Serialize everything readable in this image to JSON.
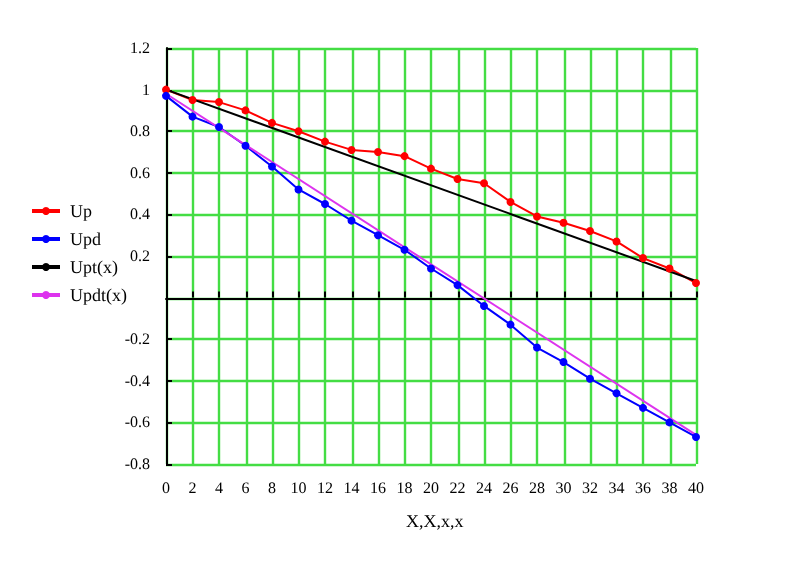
{
  "chart_data": {
    "type": "line",
    "xlabel": "X,X,x,x",
    "xlim": [
      0,
      40
    ],
    "ylim": [
      -0.8,
      1.2
    ],
    "xticks": [
      0,
      2,
      4,
      6,
      8,
      10,
      12,
      14,
      16,
      18,
      20,
      22,
      24,
      26,
      28,
      30,
      32,
      34,
      36,
      38,
      40
    ],
    "yticks": [
      -0.8,
      -0.6,
      -0.4,
      -0.2,
      {
        "value": 0,
        "label": null
      },
      0.2,
      0.4,
      0.6,
      0.8,
      1,
      1.2
    ],
    "grid": true,
    "legend": "left",
    "series": [
      {
        "name": "Up",
        "color": "#ff0000",
        "marker": "circle",
        "x": [
          0,
          2,
          4,
          6,
          8,
          10,
          12,
          14,
          16,
          18,
          20,
          22,
          24,
          26,
          28,
          30,
          32,
          34,
          36,
          38,
          40
        ],
        "values": [
          1.0,
          0.95,
          0.94,
          0.9,
          0.84,
          0.8,
          0.75,
          0.71,
          0.7,
          0.68,
          0.62,
          0.57,
          0.55,
          0.46,
          0.39,
          0.36,
          0.32,
          0.27,
          0.19,
          0.14,
          0.07
        ]
      },
      {
        "name": "Upd",
        "color": "#0000ff",
        "marker": "circle",
        "x": [
          0,
          2,
          4,
          6,
          8,
          10,
          12,
          14,
          16,
          18,
          20,
          22,
          24,
          26,
          28,
          30,
          32,
          34,
          36,
          38,
          40
        ],
        "values": [
          0.97,
          0.87,
          0.82,
          0.73,
          0.63,
          0.52,
          0.45,
          0.37,
          0.3,
          0.23,
          0.14,
          0.06,
          -0.04,
          -0.13,
          -0.24,
          -0.31,
          -0.39,
          -0.46,
          -0.53,
          -0.6,
          -0.67
        ]
      },
      {
        "name": "Upt(x)",
        "color": "#000000",
        "marker": "none",
        "x": [
          0,
          40
        ],
        "values": [
          1.0,
          0.08
        ]
      },
      {
        "name": "Updt(x)",
        "color": "#dd33ee",
        "marker": "none",
        "x": [
          0,
          40
        ],
        "values": [
          0.98,
          -0.66
        ]
      }
    ]
  }
}
